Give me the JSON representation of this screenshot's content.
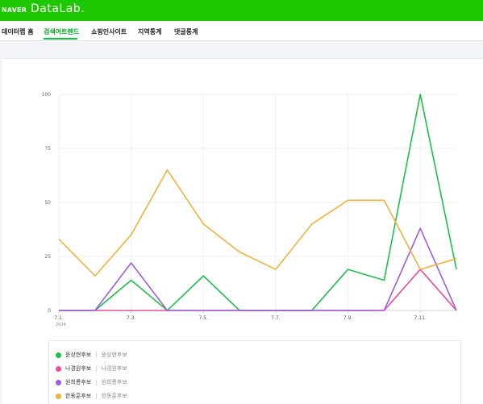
{
  "header": {
    "naver_logo": "NAVER",
    "datalab_logo": "DataLab."
  },
  "nav": {
    "items": [
      {
        "label": "데이터랩 홈"
      },
      {
        "label": "검색어트렌드"
      },
      {
        "label": "쇼핑인사이트"
      },
      {
        "label": "지역통계"
      },
      {
        "label": "댓글통계"
      }
    ],
    "active_index": 1
  },
  "chart_data": {
    "type": "line",
    "x": [
      "7.1.",
      "7.2.",
      "7.3.",
      "7.4.",
      "7.5.",
      "7.6.",
      "7.7.",
      "7.8.",
      "7.9.",
      "7.10.",
      "7.11.",
      "7.12."
    ],
    "x_tick_labels": [
      "7.1.",
      "7.3.",
      "7.5.",
      "7.7.",
      "7.9.",
      "7.11."
    ],
    "x_tick_indices": [
      0,
      2,
      4,
      6,
      8,
      10
    ],
    "x_sublabel": "2024",
    "y_ticks": [
      0,
      25,
      50,
      75,
      100
    ],
    "ylim": [
      0,
      100
    ],
    "grid": true,
    "series": [
      {
        "name": "윤상현후보",
        "color": "#1dc04b",
        "values": [
          0,
          0,
          14,
          0,
          16,
          0,
          0,
          0,
          19,
          14,
          100,
          19
        ]
      },
      {
        "name": "나경원후보",
        "color": "#e84e9b",
        "values": [
          0,
          0,
          0,
          0,
          0,
          0,
          0,
          0,
          0,
          0,
          19,
          0
        ]
      },
      {
        "name": "원희룡후보",
        "color": "#9b5de5",
        "values": [
          0,
          0,
          22,
          0,
          0,
          0,
          0,
          0,
          0,
          0,
          38,
          0
        ]
      },
      {
        "name": "한동훈후보",
        "color": "#f4b13a",
        "values": [
          33,
          16,
          35,
          65,
          40,
          27,
          19,
          40,
          51,
          51,
          19,
          24
        ]
      }
    ]
  },
  "legend": {
    "items": [
      {
        "name": "윤상현후보",
        "sub": "윤상현후보",
        "color": "#1dc04b"
      },
      {
        "name": "나경원후보",
        "sub": "나경원후보",
        "color": "#e84e9b"
      },
      {
        "name": "원희룡후보",
        "sub": "원희룡후보",
        "color": "#9b5de5"
      },
      {
        "name": "한동훈후보",
        "sub": "한동훈후보",
        "color": "#f4b13a"
      }
    ]
  }
}
